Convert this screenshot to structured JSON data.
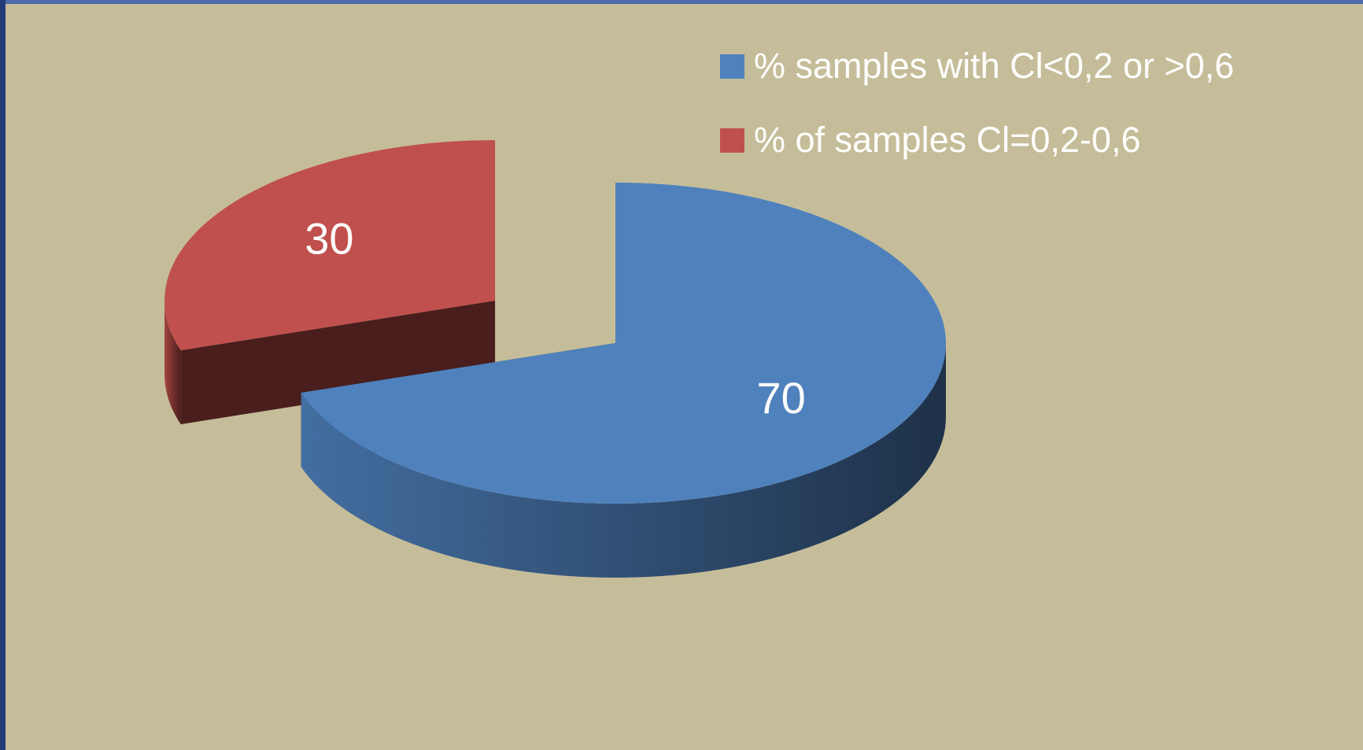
{
  "chart_data": {
    "type": "pie",
    "categories": [
      "% samples with Cl<0,2 or >0,6",
      "% of samples Cl=0,2-0,6"
    ],
    "values": [
      70,
      30
    ],
    "colors": [
      "#4f81bd",
      "#c0504d"
    ],
    "exploded": [
      false,
      true
    ],
    "legend": "top-right"
  }
}
